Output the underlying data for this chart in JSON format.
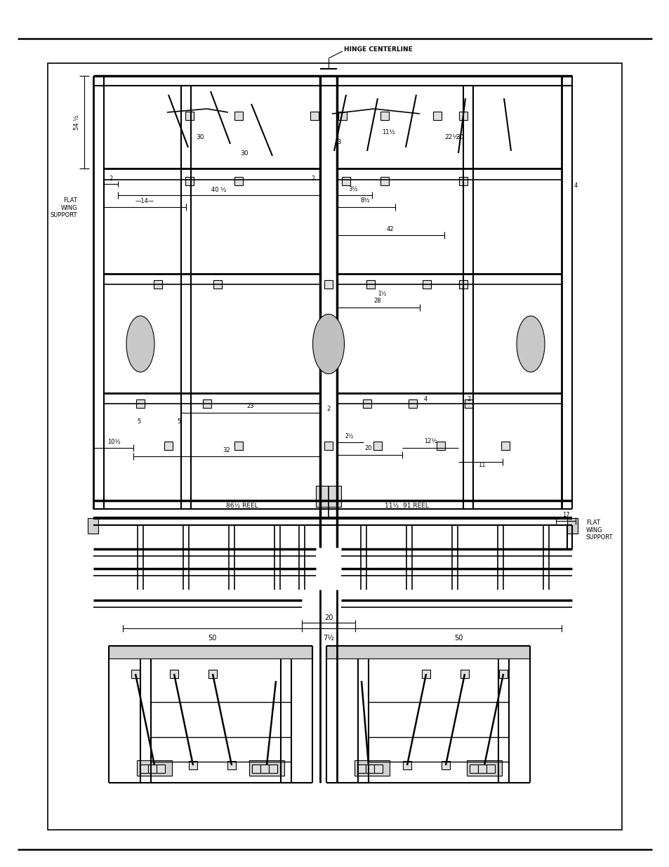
{
  "bg_color": "#ffffff",
  "lc": "#000000",
  "fig_width": 9.54,
  "fig_height": 12.35,
  "hinge_centerline_label": "HINGE CENTERLINE",
  "flat_wing_support_left": "FLAT\nWING\nSUPPORT",
  "flat_wing_support_right": "FLAT\nWING\nSUPPORT"
}
